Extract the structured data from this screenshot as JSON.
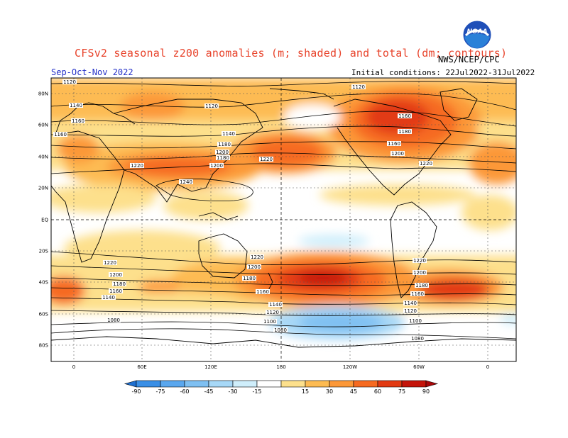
{
  "header": {
    "title": "CFSv2 seasonal z200 anomalies (m; shaded) and total (dm; contours)",
    "agency": "NWS/NCEP/CPC",
    "season": "Sep-Oct-Nov 2022",
    "initial_conditions": "Initial conditions: 22Jul2022-31Jul2022",
    "logo_text": "NOAA"
  },
  "axes": {
    "lat_labels": [
      "80N",
      "60N",
      "40N",
      "20N",
      "EQ",
      "20S",
      "40S",
      "60S",
      "80S"
    ],
    "lon_labels": [
      "0",
      "60E",
      "120E",
      "180",
      "120W",
      "60W",
      "0"
    ]
  },
  "contour_labels": [
    "1120",
    "1120",
    "1120",
    "1140",
    "1160",
    "1160",
    "1140",
    "1180",
    "1160",
    "1200",
    "1220",
    "1180",
    "1200",
    "1220",
    "1240",
    "1160",
    "1180",
    "1200",
    "1220",
    "1220",
    "1200",
    "1180",
    "1160",
    "1140",
    "1220",
    "1200",
    "1180",
    "1160",
    "1140",
    "1120",
    "1100",
    "1080",
    "1220",
    "1200",
    "1180",
    "1160",
    "1140",
    "1120",
    "1100",
    "1080",
    "1080"
  ],
  "colorbar": {
    "ticks": [
      "-90",
      "-75",
      "-60",
      "-45",
      "-30",
      "-15",
      "15",
      "30",
      "45",
      "60",
      "75",
      "90"
    ],
    "colors": [
      "#1e6fd0",
      "#3a8fe6",
      "#5aa7ee",
      "#7fc0f2",
      "#a7d8f7",
      "#cfeefb",
      "#ffffff",
      "#fde08c",
      "#fdbb52",
      "#fc9838",
      "#f66a20",
      "#e23a12",
      "#c4140a",
      "#a8080a"
    ]
  }
}
